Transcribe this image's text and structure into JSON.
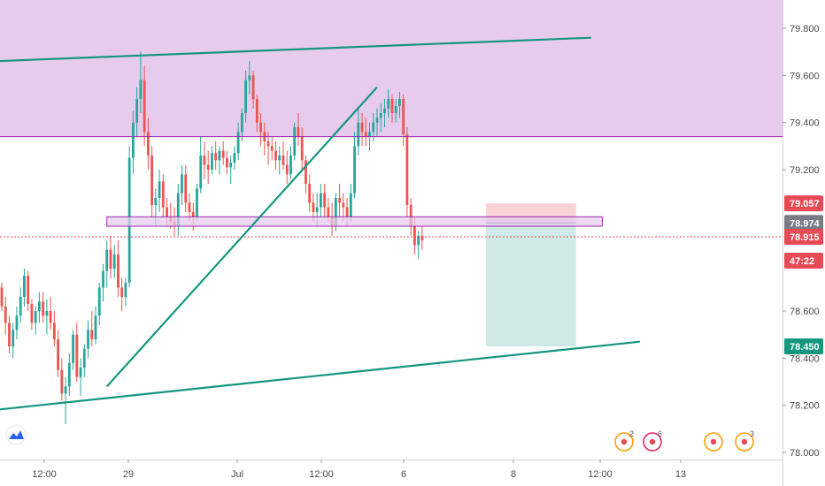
{
  "chart_data": {
    "type": "candlestick",
    "instrument_note": "",
    "y_axis": {
      "ticks": [
        "79.800",
        "79.600",
        "79.400",
        "79.200",
        "78.600",
        "78.400",
        "78.200",
        "78.000"
      ],
      "tick_values": [
        79.8,
        79.6,
        79.4,
        79.2,
        78.6,
        78.4,
        78.2,
        78.0
      ],
      "ylim": [
        77.97,
        79.92
      ]
    },
    "x_axis": {
      "ticks": [
        "12:00",
        "29",
        "Jul",
        "12:00",
        "6",
        "8",
        "12:00",
        "13"
      ]
    },
    "price_badges": [
      {
        "label": "79.057",
        "value": 79.057,
        "color": "#e84a55"
      },
      {
        "label": "78.974",
        "value": 78.974,
        "color": "#787b86"
      },
      {
        "label": "78.915",
        "value": 78.915,
        "color": "#e84a55"
      },
      {
        "label": "47:22",
        "value": 78.82,
        "color": "#e84a55"
      },
      {
        "label": "78.450",
        "value": 78.45,
        "color": "#14967f"
      }
    ],
    "resistance_zone": {
      "from": 79.34,
      "to": 79.92,
      "color": "#e6cbec"
    },
    "horizontal_lines": [
      {
        "value": 79.34,
        "color": "#9c27b0"
      },
      {
        "value": 78.915,
        "color": "#e84a55",
        "style": "dotted"
      }
    ],
    "support_rectangle": {
      "t0": 28,
      "t1": 160,
      "from": 78.96,
      "to": 79.0,
      "color": "#9c27b0"
    },
    "trendlines": [
      {
        "t0": -2,
        "p0": 79.66,
        "t1": 157,
        "p1": 79.76,
        "color": "#14967f"
      },
      {
        "t0": -2,
        "p0": 78.18,
        "t1": 170,
        "p1": 78.47,
        "color": "#14967f"
      },
      {
        "t0": 28,
        "p0": 78.28,
        "t1": 100,
        "p1": 79.55,
        "color": "#14967f"
      }
    ],
    "position_tool": {
      "t0": 129,
      "t1": 153,
      "entry": 78.974,
      "stop": 79.057,
      "target": 78.45,
      "stop_color": "#f8d2d4",
      "target_color": "#cfe9e6"
    },
    "colors": {
      "up": "#26a69a",
      "down": "#ef5350"
    },
    "candles_ohlc": [
      [
        78.7,
        78.72,
        78.6,
        78.62
      ],
      [
        78.62,
        78.66,
        78.5,
        78.55
      ],
      [
        78.55,
        78.58,
        78.42,
        78.45
      ],
      [
        78.45,
        78.55,
        78.4,
        78.52
      ],
      [
        78.52,
        78.62,
        78.48,
        78.58
      ],
      [
        78.58,
        78.7,
        78.55,
        78.66
      ],
      [
        78.66,
        78.78,
        78.62,
        78.75
      ],
      [
        78.75,
        78.77,
        78.6,
        78.63
      ],
      [
        78.63,
        78.65,
        78.52,
        78.55
      ],
      [
        78.55,
        78.62,
        78.5,
        78.6
      ],
      [
        78.6,
        78.68,
        78.55,
        78.64
      ],
      [
        78.64,
        78.68,
        78.55,
        78.58
      ],
      [
        78.58,
        78.65,
        78.5,
        78.6
      ],
      [
        78.6,
        78.66,
        78.52,
        78.55
      ],
      [
        78.55,
        78.6,
        78.45,
        78.48
      ],
      [
        78.48,
        78.52,
        78.32,
        78.35
      ],
      [
        78.35,
        78.4,
        78.22,
        78.25
      ],
      [
        78.25,
        78.32,
        78.12,
        78.28
      ],
      [
        78.28,
        78.42,
        78.24,
        78.38
      ],
      [
        78.38,
        78.52,
        78.35,
        78.5
      ],
      [
        78.5,
        78.55,
        78.3,
        78.32
      ],
      [
        78.32,
        78.4,
        78.24,
        78.36
      ],
      [
        78.36,
        78.46,
        78.32,
        78.44
      ],
      [
        78.44,
        78.56,
        78.4,
        78.52
      ],
      [
        78.52,
        78.6,
        78.45,
        78.48
      ],
      [
        78.48,
        78.62,
        78.46,
        78.58
      ],
      [
        78.58,
        78.72,
        78.54,
        78.7
      ],
      [
        78.7,
        78.8,
        78.64,
        78.77
      ],
      [
        78.77,
        78.9,
        78.7,
        78.86
      ],
      [
        78.86,
        78.92,
        78.74,
        78.78
      ],
      [
        78.78,
        78.88,
        78.74,
        78.84
      ],
      [
        78.84,
        78.9,
        78.66,
        78.7
      ],
      [
        78.7,
        78.74,
        78.6,
        78.66
      ],
      [
        78.66,
        78.74,
        78.62,
        78.72
      ],
      [
        78.72,
        79.3,
        78.7,
        79.25
      ],
      [
        79.25,
        79.45,
        79.18,
        79.4
      ],
      [
        79.4,
        79.55,
        79.34,
        79.5
      ],
      [
        79.5,
        79.7,
        79.44,
        79.58
      ],
      [
        79.58,
        79.64,
        79.3,
        79.36
      ],
      [
        79.36,
        79.42,
        79.2,
        79.26
      ],
      [
        79.26,
        79.3,
        79.0,
        79.05
      ],
      [
        79.05,
        79.12,
        78.96,
        79.08
      ],
      [
        79.08,
        79.2,
        79.02,
        79.15
      ],
      [
        79.15,
        79.18,
        79.0,
        79.04
      ],
      [
        79.04,
        79.08,
        78.96,
        79.0
      ],
      [
        79.0,
        79.06,
        78.95,
        78.98
      ],
      [
        78.98,
        79.04,
        78.92,
        78.96
      ],
      [
        78.96,
        79.14,
        78.92,
        79.1
      ],
      [
        79.1,
        79.22,
        79.05,
        79.18
      ],
      [
        79.18,
        79.22,
        79.02,
        79.06
      ],
      [
        79.06,
        79.1,
        78.98,
        79.02
      ],
      [
        79.02,
        79.06,
        78.94,
        79.0
      ],
      [
        79.0,
        79.14,
        78.98,
        79.12
      ],
      [
        79.12,
        79.34,
        79.1,
        79.26
      ],
      [
        79.26,
        79.32,
        79.16,
        79.22
      ],
      [
        79.22,
        79.28,
        79.14,
        79.2
      ],
      [
        79.2,
        79.3,
        79.18,
        79.27
      ],
      [
        79.27,
        79.32,
        79.2,
        79.24
      ],
      [
        79.24,
        79.3,
        79.18,
        79.28
      ],
      [
        79.28,
        79.32,
        79.22,
        79.25
      ],
      [
        79.25,
        79.28,
        79.18,
        79.21
      ],
      [
        79.21,
        79.26,
        79.14,
        79.23
      ],
      [
        79.23,
        79.3,
        79.2,
        79.27
      ],
      [
        79.27,
        79.4,
        79.24,
        79.36
      ],
      [
        79.36,
        79.46,
        79.32,
        79.44
      ],
      [
        79.44,
        79.62,
        79.4,
        79.58
      ],
      [
        79.58,
        79.66,
        79.52,
        79.6
      ],
      [
        79.6,
        79.62,
        79.46,
        79.5
      ],
      [
        79.5,
        79.52,
        79.36,
        79.4
      ],
      [
        79.4,
        79.44,
        79.3,
        79.36
      ],
      [
        79.36,
        79.4,
        79.26,
        79.32
      ],
      [
        79.32,
        79.36,
        79.22,
        79.3
      ],
      [
        79.3,
        79.34,
        79.24,
        79.28
      ],
      [
        79.28,
        79.32,
        79.2,
        79.24
      ],
      [
        79.24,
        79.3,
        79.18,
        79.26
      ],
      [
        79.26,
        79.32,
        79.2,
        79.22
      ],
      [
        79.22,
        79.28,
        79.14,
        79.18
      ],
      [
        79.18,
        79.3,
        79.16,
        79.26
      ],
      [
        79.26,
        79.4,
        79.24,
        79.38
      ],
      [
        79.38,
        79.44,
        79.3,
        79.34
      ],
      [
        79.34,
        79.38,
        79.2,
        79.24
      ],
      [
        79.24,
        79.26,
        79.1,
        79.14
      ],
      [
        79.14,
        79.18,
        79.02,
        79.06
      ],
      [
        79.06,
        79.1,
        78.98,
        79.02
      ],
      [
        79.02,
        79.1,
        78.96,
        79.04
      ],
      [
        79.04,
        79.14,
        79.0,
        79.1
      ],
      [
        79.1,
        79.14,
        79.0,
        79.04
      ],
      [
        79.04,
        79.08,
        78.98,
        79.0
      ],
      [
        79.0,
        79.06,
        78.92,
        78.96
      ],
      [
        78.96,
        79.1,
        78.94,
        79.08
      ],
      [
        79.08,
        79.14,
        79.0,
        79.06
      ],
      [
        79.06,
        79.1,
        78.98,
        79.04
      ],
      [
        79.04,
        79.08,
        78.96,
        79.0
      ],
      [
        79.0,
        79.14,
        78.98,
        79.1
      ],
      [
        79.1,
        79.36,
        79.08,
        79.3
      ],
      [
        79.3,
        79.46,
        79.26,
        79.4
      ],
      [
        79.4,
        79.44,
        79.3,
        79.36
      ],
      [
        79.36,
        79.42,
        79.3,
        79.34
      ],
      [
        79.34,
        79.4,
        79.28,
        79.36
      ],
      [
        79.36,
        79.44,
        79.32,
        79.4
      ],
      [
        79.4,
        79.46,
        79.34,
        79.42
      ],
      [
        79.42,
        79.48,
        79.36,
        79.44
      ],
      [
        79.44,
        79.5,
        79.38,
        79.46
      ],
      [
        79.46,
        79.54,
        79.42,
        79.5
      ],
      [
        79.5,
        79.52,
        79.4,
        79.44
      ],
      [
        79.44,
        79.5,
        79.4,
        79.47
      ],
      [
        79.47,
        79.53,
        79.42,
        79.5
      ],
      [
        79.5,
        79.52,
        79.3,
        79.35
      ],
      [
        79.35,
        79.38,
        79.0,
        79.05
      ],
      [
        79.05,
        79.08,
        78.92,
        78.96
      ],
      [
        78.96,
        79.0,
        78.84,
        78.88
      ],
      [
        78.88,
        78.94,
        78.82,
        78.92
      ],
      [
        78.92,
        78.96,
        78.86,
        78.9
      ]
    ],
    "events": [
      {
        "label": "2",
        "color": "#ff9800"
      },
      {
        "label": "6",
        "color": "#e91e63"
      },
      {
        "label": "",
        "color": "#ff9800"
      },
      {
        "label": "3",
        "color": "#ff9800"
      }
    ]
  }
}
